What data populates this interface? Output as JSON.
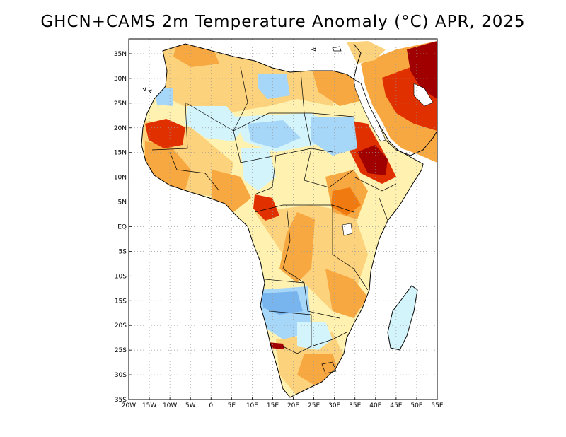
{
  "title": "GHCN+CAMS 2m Temperature Anomaly (°C) APR, 2025",
  "map": {
    "lon_range": [
      -20,
      55
    ],
    "lat_range": [
      -35,
      38
    ],
    "grid": true,
    "lat_labels": [
      "35N",
      "30N",
      "25N",
      "20N",
      "15N",
      "10N",
      "5N",
      "EQ",
      "5S",
      "10S",
      "15S",
      "20S",
      "25S",
      "30S",
      "35S"
    ],
    "lon_labels": [
      "20W",
      "15W",
      "10W",
      "5W",
      "0",
      "5E",
      "10E",
      "15E",
      "20E",
      "25E",
      "30E",
      "35E",
      "40E",
      "45E",
      "50E",
      "55E"
    ],
    "colors": {
      "strong_warm": "#a00000",
      "warm_red": "#e03000",
      "warm_orange": "#f07a10",
      "orange": "#f8a840",
      "light_orange": "#fcd27c",
      "pale_yellow": "#fff2b0",
      "pale_cyan": "#d4f4fc",
      "light_blue": "#a6d6f8",
      "blue": "#78b4ee"
    }
  }
}
